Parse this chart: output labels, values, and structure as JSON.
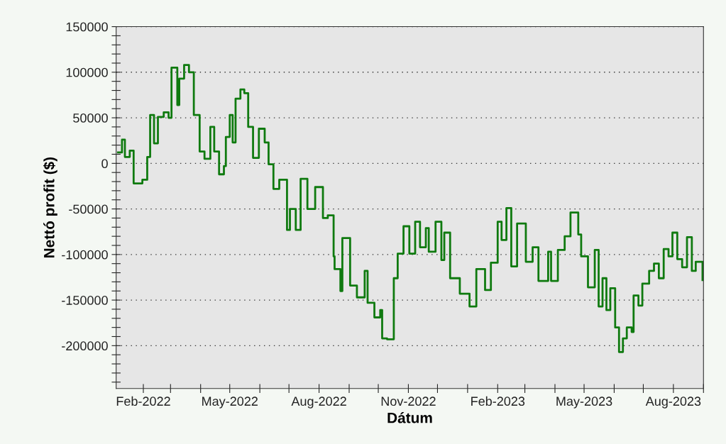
{
  "chart_data": {
    "type": "step",
    "xlabel": "Dátum",
    "ylabel": "Nettó profit ($)",
    "grid": "y",
    "xlim": [
      "2022-01-04",
      "2023-09-01"
    ],
    "ylim": [
      -247000,
      150000
    ],
    "xticks": [
      {
        "value": "2022-02-01",
        "label": "Feb-2022"
      },
      {
        "value": "2022-03-01",
        "label": null
      },
      {
        "value": "2022-04-01",
        "label": null
      },
      {
        "value": "2022-05-01",
        "label": "May-2022"
      },
      {
        "value": "2022-06-01",
        "label": null
      },
      {
        "value": "2022-07-01",
        "label": null
      },
      {
        "value": "2022-08-01",
        "label": "Aug-2022"
      },
      {
        "value": "2022-09-01",
        "label": null
      },
      {
        "value": "2022-10-01",
        "label": null
      },
      {
        "value": "2022-11-01",
        "label": "Nov-2022"
      },
      {
        "value": "2022-12-01",
        "label": null
      },
      {
        "value": "2023-01-01",
        "label": null
      },
      {
        "value": "2023-02-01",
        "label": "Feb-2023"
      },
      {
        "value": "2023-03-01",
        "label": null
      },
      {
        "value": "2023-04-01",
        "label": null
      },
      {
        "value": "2023-05-01",
        "label": "May-2023"
      },
      {
        "value": "2023-06-01",
        "label": null
      },
      {
        "value": "2023-07-01",
        "label": null
      },
      {
        "value": "2023-08-01",
        "label": "Aug-2023"
      },
      {
        "value": "2023-09-01",
        "label": null
      }
    ],
    "yticks": [
      150000,
      100000,
      50000,
      0,
      -50000,
      -100000,
      -150000,
      -200000,
      {
        "value": 140000,
        "label": null
      },
      {
        "value": 130000,
        "label": null
      },
      {
        "value": 120000,
        "label": null
      },
      {
        "value": 110000,
        "label": null
      },
      {
        "value": 90000,
        "label": null
      },
      {
        "value": 80000,
        "label": null
      },
      {
        "value": 70000,
        "label": null
      },
      {
        "value": 60000,
        "label": null
      },
      {
        "value": 40000,
        "label": null
      },
      {
        "value": 30000,
        "label": null
      },
      {
        "value": 20000,
        "label": null
      },
      {
        "value": 10000,
        "label": null
      },
      {
        "value": -10000,
        "label": null
      },
      {
        "value": -20000,
        "label": null
      },
      {
        "value": -30000,
        "label": null
      },
      {
        "value": -40000,
        "label": null
      },
      {
        "value": -60000,
        "label": null
      },
      {
        "value": -70000,
        "label": null
      },
      {
        "value": -80000,
        "label": null
      },
      {
        "value": -90000,
        "label": null
      },
      {
        "value": -110000,
        "label": null
      },
      {
        "value": -120000,
        "label": null
      },
      {
        "value": -130000,
        "label": null
      },
      {
        "value": -140000,
        "label": null
      },
      {
        "value": -160000,
        "label": null
      },
      {
        "value": -170000,
        "label": null
      },
      {
        "value": -180000,
        "label": null
      },
      {
        "value": -190000,
        "label": null
      },
      {
        "value": -210000,
        "label": null
      },
      {
        "value": -220000,
        "label": null
      },
      {
        "value": -230000,
        "label": null
      },
      {
        "value": -240000,
        "label": null
      }
    ],
    "series": [
      {
        "color": "#0f7a0f",
        "x": [
          "2022-01-06",
          "2022-01-10",
          "2022-01-13",
          "2022-01-18",
          "2022-01-22",
          "2022-01-31",
          "2022-02-05",
          "2022-02-08",
          "2022-02-12",
          "2022-02-16",
          "2022-02-22",
          "2022-02-27",
          "2022-03-02",
          "2022-03-08",
          "2022-03-10",
          "2022-03-15",
          "2022-03-20",
          "2022-03-25",
          "2022-03-31",
          "2022-04-05",
          "2022-04-11",
          "2022-04-15",
          "2022-04-20",
          "2022-04-25",
          "2022-04-27",
          "2022-05-01",
          "2022-05-04",
          "2022-05-07",
          "2022-05-12",
          "2022-05-16",
          "2022-05-20",
          "2022-05-25",
          "2022-05-31",
          "2022-06-06",
          "2022-06-10",
          "2022-06-15",
          "2022-06-21",
          "2022-06-29",
          "2022-07-02",
          "2022-07-08",
          "2022-07-13",
          "2022-07-20",
          "2022-07-28",
          "2022-08-05",
          "2022-08-10",
          "2022-08-16",
          "2022-08-17",
          "2022-08-23",
          "2022-08-25",
          "2022-09-02",
          "2022-09-09",
          "2022-09-17",
          "2022-09-20",
          "2022-09-27",
          "2022-10-03",
          "2022-10-05",
          "2022-10-10",
          "2022-10-17",
          "2022-10-21",
          "2022-10-27",
          "2022-11-02",
          "2022-11-08",
          "2022-11-13",
          "2022-11-19",
          "2022-11-22",
          "2022-11-29",
          "2022-12-05",
          "2022-12-08",
          "2022-12-14",
          "2022-12-24",
          "2023-01-03",
          "2023-01-10",
          "2023-01-19",
          "2023-01-25",
          "2023-02-01",
          "2023-02-05",
          "2023-02-10",
          "2023-02-15",
          "2023-02-21",
          "2023-03-02",
          "2023-03-09",
          "2023-03-15",
          "2023-03-25",
          "2023-03-28",
          "2023-04-04",
          "2023-04-11",
          "2023-04-17",
          "2023-04-25",
          "2023-04-28",
          "2023-05-05",
          "2023-05-12",
          "2023-05-16",
          "2023-05-20",
          "2023-05-24",
          "2023-05-28",
          "2023-06-02",
          "2023-06-06",
          "2023-06-10",
          "2023-06-14",
          "2023-06-19",
          "2023-06-21",
          "2023-06-26",
          "2023-06-30",
          "2023-07-07",
          "2023-07-12",
          "2023-07-17",
          "2023-07-22",
          "2023-07-27",
          "2023-07-31",
          "2023-08-05",
          "2023-08-10",
          "2023-08-15",
          "2023-08-20",
          "2023-08-24",
          "2023-08-31"
        ],
        "values": [
          12000,
          26000,
          7000,
          14000,
          -22000,
          -18000,
          7000,
          53000,
          22000,
          51000,
          56000,
          50000,
          105000,
          64000,
          93000,
          108000,
          100000,
          53000,
          13000,
          5000,
          40000,
          13000,
          -12000,
          -3000,
          29000,
          53000,
          23000,
          71000,
          81000,
          77000,
          40000,
          6000,
          38000,
          23000,
          -1000,
          -28000,
          -18000,
          -73000,
          -50000,
          -73000,
          -17000,
          -50000,
          -26000,
          -60000,
          -57000,
          -102000,
          -116000,
          -140000,
          -82000,
          -134000,
          -147000,
          -118000,
          -153000,
          -169000,
          -161000,
          -192000,
          -193000,
          -126000,
          -99000,
          -69000,
          -99000,
          -64000,
          -92000,
          -71000,
          -97000,
          -64000,
          -106000,
          -76000,
          -126000,
          -143000,
          -157000,
          -116000,
          -139000,
          -109000,
          -64000,
          -84000,
          -49000,
          -113000,
          -66000,
          -108000,
          -92000,
          -129000,
          -97000,
          -129000,
          -95000,
          -80000,
          -54000,
          -78000,
          -102000,
          -136000,
          -95000,
          -157000,
          -126000,
          -161000,
          -137000,
          -180000,
          -207000,
          -192000,
          -180000,
          -185000,
          -145000,
          -156000,
          -132000,
          -118000,
          -110000,
          -126000,
          -94000,
          -102000,
          -76000,
          -105000,
          -114000,
          -81000,
          -118000,
          -108000,
          -128000
        ]
      }
    ]
  }
}
